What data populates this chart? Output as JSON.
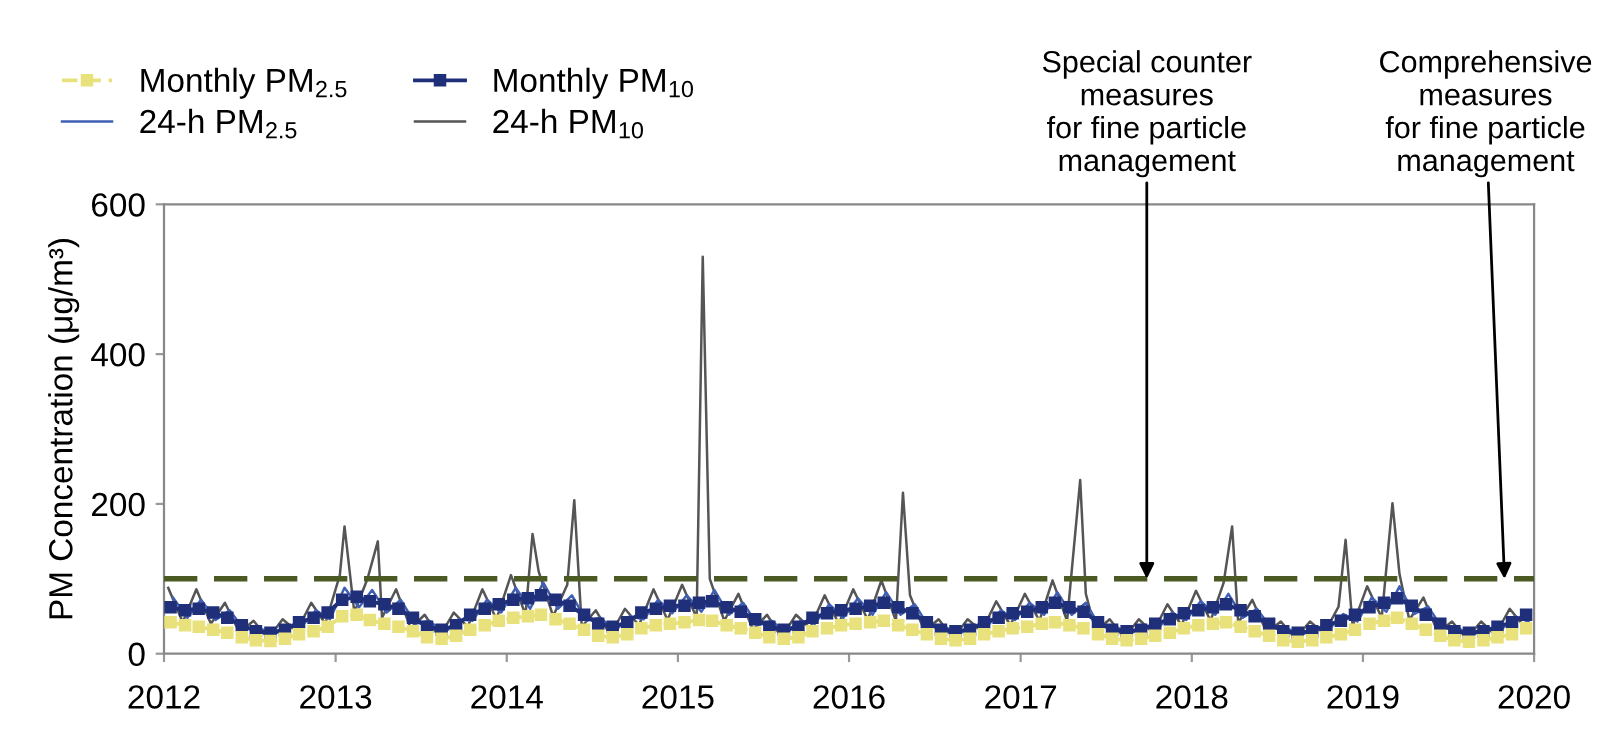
{
  "chart_data": {
    "type": "line",
    "ylabel": "PM Concentration (μg/m³)",
    "xlim": [
      "2012-01-01",
      "2020-01-01"
    ],
    "xticks": [
      {
        "value": "2012-01-01",
        "label": "2012"
      },
      {
        "value": "2013-01-01",
        "label": "2013"
      },
      {
        "value": "2014-01-01",
        "label": "2014"
      },
      {
        "value": "2015-01-01",
        "label": "2015"
      },
      {
        "value": "2016-01-01",
        "label": "2016"
      },
      {
        "value": "2017-01-01",
        "label": "2017"
      },
      {
        "value": "2018-01-01",
        "label": "2018"
      },
      {
        "value": "2019-01-01",
        "label": "2019"
      },
      {
        "value": "2020-01-01",
        "label": "2020"
      }
    ],
    "ylim": [
      0,
      600
    ],
    "yticks": [
      0,
      200,
      400,
      600
    ],
    "grid": false,
    "legend": "top left",
    "series": [
      {
        "name": "24-h PM$_{10}$",
        "color": "#555555",
        "marker": "none",
        "x": [
          "2012-01-10",
          "2012-02-10",
          "2012-03-10",
          "2012-04-10",
          "2012-05-10",
          "2012-06-10",
          "2012-07-10",
          "2012-08-10",
          "2012-09-10",
          "2012-10-10",
          "2012-11-10",
          "2012-12-10",
          "2013-01-10",
          "2013-01-20",
          "2013-02-10",
          "2013-03-10",
          "2013-04-01",
          "2013-04-10",
          "2013-05-10",
          "2013-06-10",
          "2013-07-10",
          "2013-08-10",
          "2013-09-10",
          "2013-10-10",
          "2013-11-10",
          "2013-12-10",
          "2014-01-10",
          "2014-02-10",
          "2014-02-25",
          "2014-03-10",
          "2014-04-10",
          "2014-05-10",
          "2014-05-25",
          "2014-06-10",
          "2014-07-10",
          "2014-08-10",
          "2014-09-10",
          "2014-10-10",
          "2014-11-10",
          "2014-12-10",
          "2015-01-10",
          "2015-02-10",
          "2015-02-23",
          "2015-03-10",
          "2015-04-10",
          "2015-05-10",
          "2015-06-10",
          "2015-07-10",
          "2015-08-10",
          "2015-09-10",
          "2015-10-10",
          "2015-11-10",
          "2015-12-10",
          "2016-01-10",
          "2016-02-10",
          "2016-03-10",
          "2016-04-10",
          "2016-04-25",
          "2016-05-10",
          "2016-06-10",
          "2016-07-10",
          "2016-08-10",
          "2016-09-10",
          "2016-10-10",
          "2016-11-10",
          "2016-12-10",
          "2017-01-10",
          "2017-02-10",
          "2017-03-10",
          "2017-04-10",
          "2017-05-08",
          "2017-05-20",
          "2017-06-10",
          "2017-07-10",
          "2017-08-10",
          "2017-09-10",
          "2017-10-10",
          "2017-11-10",
          "2017-12-10",
          "2018-01-10",
          "2018-02-10",
          "2018-03-10",
          "2018-03-28",
          "2018-04-10",
          "2018-05-10",
          "2018-06-10",
          "2018-07-10",
          "2018-08-10",
          "2018-09-10",
          "2018-10-10",
          "2018-11-10",
          "2018-11-25",
          "2018-12-10",
          "2019-01-10",
          "2019-02-10",
          "2019-03-05",
          "2019-03-20",
          "2019-04-10",
          "2019-05-10",
          "2019-06-10",
          "2019-07-10",
          "2019-08-10",
          "2019-09-10",
          "2019-10-10",
          "2019-11-10",
          "2019-12-10"
        ],
        "values": [
          88,
          42,
          86,
          40,
          68,
          28,
          44,
          20,
          46,
          30,
          68,
          40,
          105,
          170,
          55,
          100,
          150,
          48,
          86,
          34,
          52,
          22,
          55,
          36,
          86,
          46,
          105,
          52,
          160,
          110,
          50,
          92,
          205,
          36,
          58,
          25,
          60,
          38,
          86,
          45,
          92,
          48,
          530,
          100,
          44,
          80,
          32,
          52,
          22,
          52,
          34,
          78,
          40,
          86,
          45,
          98,
          44,
          215,
          78,
          30,
          46,
          21,
          46,
          30,
          70,
          38,
          80,
          44,
          98,
          44,
          232,
          80,
          30,
          46,
          21,
          46,
          28,
          66,
          38,
          84,
          44,
          95,
          170,
          41,
          72,
          28,
          43,
          20,
          43,
          27,
          63,
          152,
          37,
          90,
          48,
          201,
          106,
          45,
          75,
          28,
          43,
          20,
          43,
          25,
          60,
          37
        ]
      },
      {
        "name": "24-h PM$_{2.5}$",
        "color": "#3f5fb5",
        "marker": "none",
        "x": [
          "2012-01-20",
          "2012-02-20",
          "2012-03-20",
          "2012-04-20",
          "2012-05-20",
          "2012-06-20",
          "2012-07-20",
          "2012-08-20",
          "2012-09-20",
          "2012-10-20",
          "2012-11-20",
          "2012-12-20",
          "2013-01-20",
          "2013-02-20",
          "2013-03-20",
          "2013-04-20",
          "2013-05-20",
          "2013-06-20",
          "2013-07-20",
          "2013-08-20",
          "2013-09-20",
          "2013-10-20",
          "2013-11-20",
          "2013-12-20",
          "2014-01-20",
          "2014-02-20",
          "2014-03-20",
          "2014-04-20",
          "2014-05-20",
          "2014-06-20",
          "2014-07-20",
          "2014-08-20",
          "2014-09-20",
          "2014-10-20",
          "2014-11-20",
          "2014-12-20",
          "2015-01-20",
          "2015-02-20",
          "2015-03-20",
          "2015-04-20",
          "2015-05-20",
          "2015-06-20",
          "2015-07-20",
          "2015-08-20",
          "2015-09-20",
          "2015-10-20",
          "2015-11-20",
          "2015-12-20",
          "2016-01-20",
          "2016-02-20",
          "2016-03-20",
          "2016-04-20",
          "2016-05-20",
          "2016-06-20",
          "2016-07-20",
          "2016-08-20",
          "2016-09-20",
          "2016-10-20",
          "2016-11-20",
          "2016-12-20",
          "2017-01-20",
          "2017-02-20",
          "2017-03-20",
          "2017-04-20",
          "2017-05-20",
          "2017-06-20",
          "2017-07-20",
          "2017-08-20",
          "2017-09-20",
          "2017-10-20",
          "2017-11-20",
          "2017-12-20",
          "2018-01-20",
          "2018-02-20",
          "2018-03-20",
          "2018-04-20",
          "2018-05-20",
          "2018-06-20",
          "2018-07-20",
          "2018-08-20",
          "2018-09-20",
          "2018-10-20",
          "2018-11-20",
          "2018-12-20",
          "2019-01-20",
          "2019-02-20",
          "2019-03-20",
          "2019-04-20",
          "2019-05-20",
          "2019-06-20",
          "2019-07-20",
          "2019-08-20",
          "2019-09-20",
          "2019-10-20",
          "2019-11-20",
          "2019-12-20"
        ],
        "values": [
          75,
          48,
          72,
          45,
          58,
          32,
          36,
          24,
          38,
          36,
          58,
          46,
          88,
          62,
          85,
          55,
          72,
          40,
          44,
          27,
          46,
          44,
          72,
          55,
          88,
          60,
          95,
          60,
          78,
          44,
          48,
          30,
          50,
          46,
          72,
          54,
          78,
          56,
          85,
          52,
          68,
          38,
          44,
          27,
          44,
          40,
          66,
          48,
          74,
          52,
          82,
          52,
          66,
          35,
          38,
          25,
          38,
          35,
          58,
          45,
          68,
          52,
          82,
          52,
          68,
          35,
          38,
          25,
          38,
          33,
          55,
          45,
          70,
          52,
          80,
          48,
          60,
          33,
          36,
          23,
          36,
          32,
          53,
          43,
          75,
          56,
          90,
          53,
          63,
          33,
          36,
          23,
          36,
          30,
          50,
          43
        ]
      },
      {
        "name": "Monthly PM$_{10}$",
        "color": "#1f2f7a",
        "marker": "square",
        "x": [
          "2012-01-15",
          "2012-02-15",
          "2012-03-15",
          "2012-04-15",
          "2012-05-15",
          "2012-06-15",
          "2012-07-15",
          "2012-08-15",
          "2012-09-15",
          "2012-10-15",
          "2012-11-15",
          "2012-12-15",
          "2013-01-15",
          "2013-02-15",
          "2013-03-15",
          "2013-04-15",
          "2013-05-15",
          "2013-06-15",
          "2013-07-15",
          "2013-08-15",
          "2013-09-15",
          "2013-10-15",
          "2013-11-15",
          "2013-12-15",
          "2014-01-15",
          "2014-02-15",
          "2014-03-15",
          "2014-04-15",
          "2014-05-15",
          "2014-06-15",
          "2014-07-15",
          "2014-08-15",
          "2014-09-15",
          "2014-10-15",
          "2014-11-15",
          "2014-12-15",
          "2015-01-15",
          "2015-02-15",
          "2015-03-15",
          "2015-04-15",
          "2015-05-15",
          "2015-06-15",
          "2015-07-15",
          "2015-08-15",
          "2015-09-15",
          "2015-10-15",
          "2015-11-15",
          "2015-12-15",
          "2016-01-15",
          "2016-02-15",
          "2016-03-15",
          "2016-04-15",
          "2016-05-15",
          "2016-06-15",
          "2016-07-15",
          "2016-08-15",
          "2016-09-15",
          "2016-10-15",
          "2016-11-15",
          "2016-12-15",
          "2017-01-15",
          "2017-02-15",
          "2017-03-15",
          "2017-04-15",
          "2017-05-15",
          "2017-06-15",
          "2017-07-15",
          "2017-08-15",
          "2017-09-15",
          "2017-10-15",
          "2017-11-15",
          "2017-12-15",
          "2018-01-15",
          "2018-02-15",
          "2018-03-15",
          "2018-04-15",
          "2018-05-15",
          "2018-06-15",
          "2018-07-15",
          "2018-08-15",
          "2018-09-15",
          "2018-10-15",
          "2018-11-15",
          "2018-12-15",
          "2019-01-15",
          "2019-02-15",
          "2019-03-15",
          "2019-04-15",
          "2019-05-15",
          "2019-06-15",
          "2019-07-15",
          "2019-08-15",
          "2019-09-15",
          "2019-10-15",
          "2019-11-15",
          "2019-12-15"
        ],
        "values": [
          62,
          58,
          60,
          55,
          48,
          38,
          30,
          28,
          32,
          42,
          48,
          55,
          72,
          76,
          70,
          66,
          60,
          48,
          36,
          32,
          38,
          52,
          60,
          66,
          72,
          74,
          78,
          72,
          64,
          52,
          40,
          36,
          42,
          55,
          60,
          64,
          64,
          68,
          70,
          62,
          56,
          46,
          36,
          32,
          36,
          48,
          54,
          58,
          60,
          64,
          68,
          62,
          54,
          42,
          32,
          30,
          32,
          42,
          48,
          54,
          56,
          62,
          68,
          62,
          56,
          42,
          32,
          30,
          32,
          40,
          46,
          54,
          58,
          62,
          66,
          58,
          50,
          40,
          30,
          28,
          30,
          38,
          44,
          52,
          62,
          68,
          74,
          64,
          52,
          40,
          30,
          28,
          30,
          36,
          42,
          52
        ]
      },
      {
        "name": "Monthly PM$_{2.5}$",
        "color": "#e9e27c",
        "marker": "square",
        "line_style": "dashed",
        "x": [
          "2012-01-15",
          "2012-02-15",
          "2012-03-15",
          "2012-04-15",
          "2012-05-15",
          "2012-06-15",
          "2012-07-15",
          "2012-08-15",
          "2012-09-15",
          "2012-10-15",
          "2012-11-15",
          "2012-12-15",
          "2013-01-15",
          "2013-02-15",
          "2013-03-15",
          "2013-04-15",
          "2013-05-15",
          "2013-06-15",
          "2013-07-15",
          "2013-08-15",
          "2013-09-15",
          "2013-10-15",
          "2013-11-15",
          "2013-12-15",
          "2014-01-15",
          "2014-02-15",
          "2014-03-15",
          "2014-04-15",
          "2014-05-15",
          "2014-06-15",
          "2014-07-15",
          "2014-08-15",
          "2014-09-15",
          "2014-10-15",
          "2014-11-15",
          "2014-12-15",
          "2015-01-15",
          "2015-02-15",
          "2015-03-15",
          "2015-04-15",
          "2015-05-15",
          "2015-06-15",
          "2015-07-15",
          "2015-08-15",
          "2015-09-15",
          "2015-10-15",
          "2015-11-15",
          "2015-12-15",
          "2016-01-15",
          "2016-02-15",
          "2016-03-15",
          "2016-04-15",
          "2016-05-15",
          "2016-06-15",
          "2016-07-15",
          "2016-08-15",
          "2016-09-15",
          "2016-10-15",
          "2016-11-15",
          "2016-12-15",
          "2017-01-15",
          "2017-02-15",
          "2017-03-15",
          "2017-04-15",
          "2017-05-15",
          "2017-06-15",
          "2017-07-15",
          "2017-08-15",
          "2017-09-15",
          "2017-10-15",
          "2017-11-15",
          "2017-12-15",
          "2018-01-15",
          "2018-02-15",
          "2018-03-15",
          "2018-04-15",
          "2018-05-15",
          "2018-06-15",
          "2018-07-15",
          "2018-08-15",
          "2018-09-15",
          "2018-10-15",
          "2018-11-15",
          "2018-12-15",
          "2019-01-15",
          "2019-02-15",
          "2019-03-15",
          "2019-04-15",
          "2019-05-15",
          "2019-06-15",
          "2019-07-15",
          "2019-08-15",
          "2019-09-15",
          "2019-10-15",
          "2019-11-15",
          "2019-12-15"
        ],
        "values": [
          42,
          38,
          36,
          32,
          28,
          22,
          18,
          17,
          20,
          26,
          30,
          36,
          50,
          52,
          45,
          40,
          36,
          30,
          22,
          20,
          24,
          32,
          38,
          44,
          48,
          50,
          52,
          46,
          40,
          32,
          24,
          22,
          26,
          34,
          38,
          40,
          42,
          45,
          44,
          38,
          34,
          28,
          22,
          20,
          22,
          30,
          34,
          38,
          40,
          42,
          44,
          38,
          32,
          26,
          20,
          18,
          20,
          26,
          30,
          34,
          36,
          40,
          42,
          38,
          34,
          26,
          20,
          18,
          20,
          24,
          28,
          34,
          38,
          40,
          42,
          36,
          30,
          24,
          18,
          16,
          18,
          22,
          26,
          32,
          40,
          44,
          48,
          40,
          32,
          24,
          18,
          16,
          18,
          22,
          26,
          34
        ]
      }
    ],
    "ref_lines": [
      {
        "axis": "y",
        "value": 100,
        "color": "#4b5a22",
        "line_style": "dashed"
      }
    ],
    "annotations": [
      {
        "text": "Special counter\nmeasures\nfor fine particle\nmanagement",
        "x": "2017-09-27",
        "y": 100
      },
      {
        "text": "Comprehensive\nmeasures\nfor fine particle\nmanagement",
        "x": "2019-10-30",
        "y": 100
      }
    ]
  }
}
